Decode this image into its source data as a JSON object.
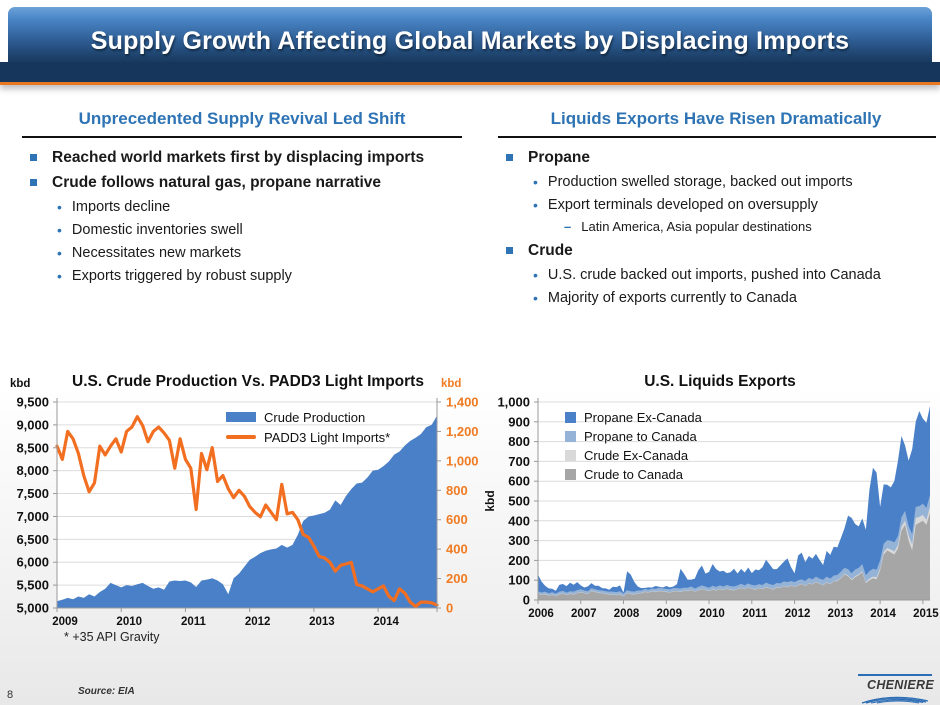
{
  "slide": {
    "title": "Supply Growth Affecting Global Markets by Displacing Imports",
    "page_number": "8",
    "source": "Source: EIA",
    "footnote": "* +35 API Gravity",
    "logo_text": "CHENIERE"
  },
  "left_panel": {
    "header": "Unprecedented Supply Revival Led Shift",
    "bullet1": "Reached world markets first by displacing imports",
    "bullet2": "Crude follows natural gas, propane narrative",
    "bullet2_subs": [
      "Imports decline",
      "Domestic inventories swell",
      "Necessitates new markets",
      "Exports triggered by robust supply"
    ]
  },
  "right_panel": {
    "header": "Liquids Exports Have Risen Dramatically",
    "propane": {
      "label": "Propane",
      "sub1": "Production swelled storage, backed out imports",
      "sub2": "Export terminals developed on oversupply",
      "dash_note": "Latin America, Asia popular destinations"
    },
    "crude": {
      "label": "Crude",
      "sub1": "U.S. crude backed out imports, pushed into Canada",
      "sub2": "Majority of exports currently to Canada"
    }
  },
  "colors": {
    "header_gradient_top": "#4a86c8",
    "header_gradient_bottom": "#16365c",
    "accent_orange": "#e87722",
    "section_header_blue": "#2e74b5",
    "chart_blue": "#4a80c8",
    "chart_orange": "#f26f21"
  },
  "chart_data": [
    {
      "type": "area",
      "title": "U.S. Crude Production Vs. PADD3 Light Imports",
      "footnote": "* +35 API Gravity",
      "left_axis": {
        "label": "kbd",
        "min": 5000,
        "max": 9500,
        "tick_step": 500
      },
      "right_axis": {
        "label": "kbd",
        "min": 0,
        "max": 1400,
        "tick_step": 200
      },
      "x_years": [
        2009,
        2010,
        2011,
        2012,
        2013,
        2014
      ],
      "points_per_year": 12,
      "grid": true,
      "legend_position": "top-center-inside",
      "series": [
        {
          "name": "Crude Production",
          "render": "area",
          "axis": "left",
          "color": "#4a80c8",
          "values": [
            5150,
            5180,
            5220,
            5190,
            5250,
            5220,
            5300,
            5250,
            5350,
            5420,
            5550,
            5500,
            5450,
            5500,
            5480,
            5520,
            5550,
            5480,
            5420,
            5450,
            5400,
            5580,
            5600,
            5590,
            5600,
            5560,
            5460,
            5600,
            5620,
            5650,
            5600,
            5520,
            5300,
            5650,
            5750,
            5900,
            6050,
            6120,
            6200,
            6250,
            6280,
            6300,
            6380,
            6320,
            6380,
            6600,
            6900,
            7000,
            7020,
            7050,
            7080,
            7150,
            7350,
            7250,
            7450,
            7600,
            7720,
            7740,
            7850,
            8000,
            8020,
            8100,
            8200,
            8350,
            8420,
            8550,
            8650,
            8720,
            8800,
            8950,
            9000,
            9200
          ]
        },
        {
          "name": "PADD3 Light Imports*",
          "render": "line",
          "axis": "right",
          "color": "#f26f21",
          "values": [
            1100,
            1010,
            1200,
            1150,
            1050,
            900,
            790,
            850,
            1100,
            1040,
            1100,
            1150,
            1060,
            1200,
            1230,
            1300,
            1240,
            1130,
            1200,
            1230,
            1190,
            1140,
            950,
            1150,
            1010,
            950,
            670,
            1050,
            940,
            1090,
            860,
            900,
            810,
            750,
            800,
            760,
            690,
            650,
            620,
            700,
            650,
            600,
            840,
            640,
            650,
            600,
            500,
            480,
            420,
            350,
            340,
            310,
            250,
            290,
            300,
            310,
            160,
            150,
            130,
            110,
            130,
            150,
            80,
            50,
            130,
            100,
            40,
            10,
            40,
            40,
            35,
            20
          ]
        }
      ]
    },
    {
      "type": "area",
      "subtype": "stacked",
      "title": "U.S. Liquids Exports",
      "y_axis": {
        "label": "kbd",
        "min": 0,
        "max": 1000,
        "tick_step": 100
      },
      "x_years": [
        2006,
        2007,
        2008,
        2009,
        2010,
        2011,
        2012,
        2013,
        2014,
        2015
      ],
      "points_per_year": 12,
      "grid": true,
      "legend_position": "top-left-inside",
      "legend_order": [
        "Propane Ex-Canada",
        "Propane to Canada",
        "Crude Ex-Canada",
        "Crude to Canada"
      ],
      "series": [
        {
          "name": "Crude to Canada",
          "color": "#a6a6a6",
          "values": [
            30,
            26,
            28,
            22,
            25,
            20,
            28,
            32,
            25,
            30,
            28,
            34,
            38,
            34,
            30,
            44,
            40,
            36,
            34,
            30,
            28,
            26,
            24,
            28,
            18,
            34,
            30,
            28,
            32,
            34,
            40,
            38,
            42,
            40,
            44,
            42,
            40,
            38,
            42,
            44,
            40,
            46,
            44,
            50,
            42,
            48,
            54,
            50,
            44,
            52,
            48,
            54,
            50,
            56,
            52,
            48,
            54,
            60,
            54,
            62,
            56,
            52,
            60,
            54,
            64,
            58,
            52,
            64,
            60,
            70,
            64,
            72,
            66,
            74,
            80,
            70,
            84,
            78,
            90,
            82,
            74,
            88,
            80,
            94,
            95,
            110,
            130,
            120,
            100,
            115,
            125,
            140,
            85,
            100,
            110,
            105,
            150,
            230,
            250,
            240,
            230,
            260,
            350,
            380,
            300,
            250,
            380,
            390,
            400,
            380,
            440
          ]
        },
        {
          "name": "Crude Ex-Canada",
          "color": "#d9d9d9",
          "values": [
            2,
            2,
            2,
            2,
            2,
            2,
            2,
            2,
            2,
            2,
            2,
            2,
            2,
            2,
            2,
            2,
            2,
            2,
            2,
            2,
            2,
            2,
            2,
            2,
            2,
            2,
            2,
            2,
            2,
            2,
            2,
            2,
            2,
            2,
            2,
            2,
            2,
            2,
            2,
            2,
            2,
            2,
            2,
            2,
            2,
            2,
            2,
            2,
            2,
            2,
            2,
            2,
            2,
            2,
            2,
            2,
            2,
            2,
            2,
            2,
            2,
            2,
            2,
            2,
            2,
            2,
            2,
            2,
            2,
            2,
            2,
            2,
            2,
            2,
            2,
            2,
            2,
            2,
            2,
            2,
            2,
            2,
            2,
            2,
            3,
            3,
            4,
            4,
            5,
            5,
            5,
            6,
            6,
            8,
            8,
            10,
            10,
            12,
            12,
            15,
            15,
            18,
            20,
            20,
            25,
            30,
            35,
            30,
            30,
            25,
            32
          ]
        },
        {
          "name": "Propane to Canada",
          "color": "#95b3d7",
          "values": [
            12,
            10,
            12,
            10,
            12,
            10,
            12,
            12,
            10,
            12,
            12,
            14,
            14,
            12,
            12,
            14,
            12,
            12,
            12,
            12,
            12,
            14,
            14,
            14,
            12,
            14,
            12,
            12,
            14,
            12,
            14,
            12,
            14,
            14,
            16,
            14,
            14,
            14,
            16,
            14,
            16,
            14,
            16,
            16,
            14,
            16,
            18,
            16,
            16,
            18,
            16,
            18,
            16,
            18,
            16,
            18,
            18,
            20,
            18,
            20,
            18,
            20,
            18,
            20,
            22,
            20,
            22,
            20,
            22,
            22,
            24,
            22,
            22,
            24,
            22,
            24,
            26,
            24,
            26,
            24,
            26,
            28,
            26,
            28,
            28,
            30,
            28,
            32,
            30,
            34,
            32,
            36,
            34,
            38,
            40,
            38,
            40,
            42,
            40,
            44,
            46,
            44,
            48,
            50,
            48,
            52,
            56,
            54,
            56,
            60,
            58
          ]
        },
        {
          "name": "Propane Ex-Canada",
          "color": "#4a80c8",
          "values": [
            85,
            55,
            30,
            25,
            18,
            15,
            35,
            35,
            33,
            43,
            35,
            40,
            20,
            15,
            25,
            25,
            18,
            22,
            12,
            15,
            10,
            25,
            25,
            30,
            5,
            95,
            85,
            50,
            20,
            12,
            5,
            12,
            5,
            15,
            5,
            5,
            15,
            10,
            8,
            20,
            100,
            70,
            40,
            35,
            50,
            85,
            100,
            65,
            80,
            110,
            90,
            70,
            80,
            60,
            70,
            90,
            60,
            75,
            65,
            80,
            60,
            80,
            70,
            90,
            115,
            100,
            80,
            70,
            90,
            100,
            120,
            70,
            45,
            125,
            135,
            95,
            110,
            105,
            115,
            95,
            75,
            130,
            120,
            145,
            140,
            170,
            200,
            270,
            280,
            230,
            210,
            230,
            230,
            410,
            510,
            490,
            270,
            300,
            280,
            270,
            310,
            380,
            410,
            330,
            330,
            430,
            430,
            480,
            430,
            430,
            450
          ]
        }
      ]
    }
  ]
}
